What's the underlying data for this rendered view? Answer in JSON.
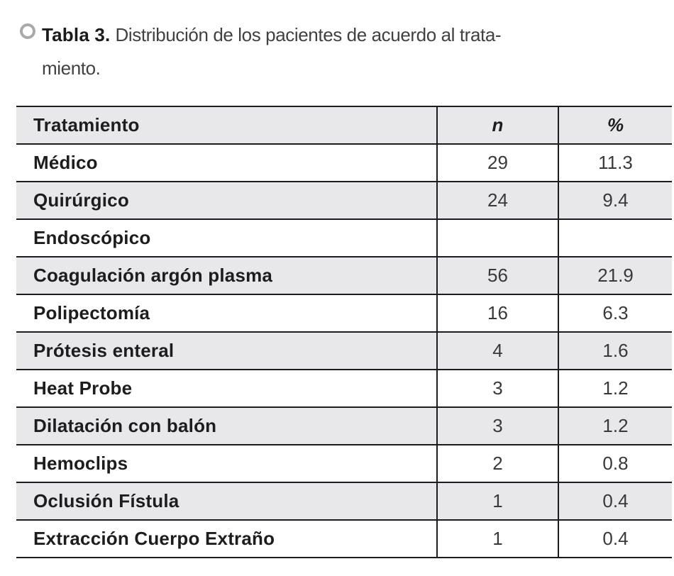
{
  "caption": {
    "bullet_icon": "circle-outline-icon",
    "label": "Tabla 3.",
    "line1": "Distribución de los pacientes de acuerdo al trata-",
    "line2": "miento."
  },
  "table": {
    "header": {
      "tratamiento": "Tratamiento",
      "n": "n",
      "pct": "%"
    },
    "rows": [
      {
        "tratamiento": "Médico",
        "n": "29",
        "pct": "11.3"
      },
      {
        "tratamiento": "Quirúrgico",
        "n": "24",
        "pct": "9.4"
      },
      {
        "tratamiento": "Endoscópico",
        "n": "",
        "pct": ""
      },
      {
        "tratamiento": "Coagulación argón plasma",
        "n": "56",
        "pct": "21.9"
      },
      {
        "tratamiento": "Polipectomía",
        "n": "16",
        "pct": "6.3"
      },
      {
        "tratamiento": "Prótesis enteral",
        "n": "4",
        "pct": "1.6"
      },
      {
        "tratamiento": "Heat Probe",
        "n": "3",
        "pct": "1.2"
      },
      {
        "tratamiento": "Dilatación con balón",
        "n": "3",
        "pct": "1.2"
      },
      {
        "tratamiento": "Hemoclips",
        "n": "2",
        "pct": "0.8"
      },
      {
        "tratamiento": "Oclusión Fístula",
        "n": "1",
        "pct": "0.4"
      },
      {
        "tratamiento": "Extracción Cuerpo Extraño",
        "n": "1",
        "pct": "0.4"
      }
    ]
  },
  "colors": {
    "row_shade": "#e8e8ea",
    "border": "#1c1b1d",
    "text": "#1d1c1e",
    "number_text": "#39383a",
    "bullet_ring": "#a9a9ab",
    "background": "#ffffff"
  }
}
